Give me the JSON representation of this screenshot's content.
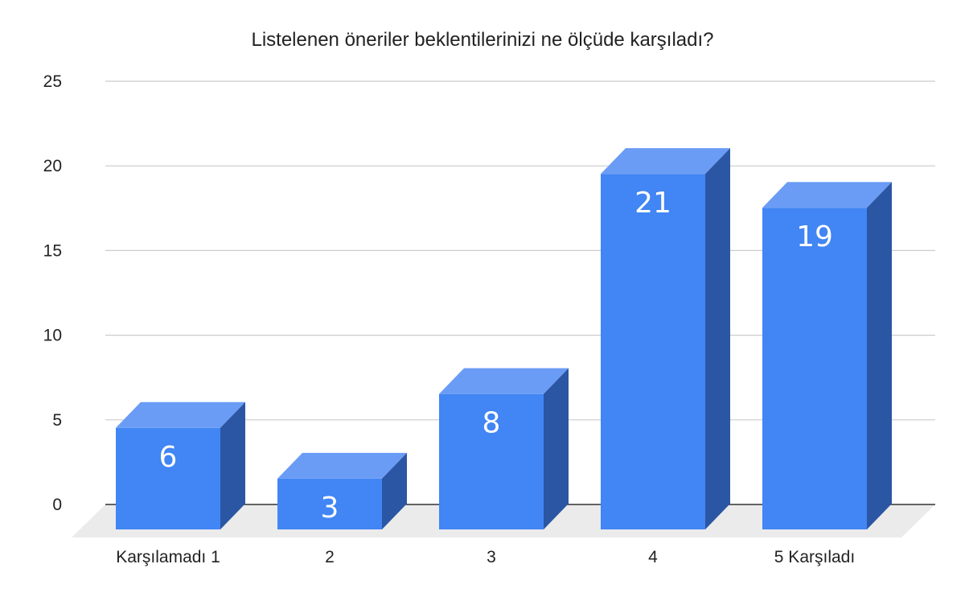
{
  "chart_data": {
    "type": "bar",
    "title": "Listelenen öneriler beklentilerinizi ne ölçüde karşıladı?",
    "categories": [
      "Karşılamadı 1",
      "2",
      "3",
      "4",
      "5 Karşıladı"
    ],
    "series": [
      {
        "values": [
          6,
          3,
          8,
          21,
          19
        ]
      }
    ],
    "data_labels": [
      "6",
      "3",
      "8",
      "21",
      "19"
    ],
    "y_ticks": [
      "0",
      "5",
      "10",
      "15",
      "20",
      "25"
    ],
    "ylim": [
      0,
      25
    ],
    "xlabel": "",
    "ylabel": "",
    "grid": true,
    "legend": "none",
    "style": "3d",
    "colors": {
      "bar_front": "#4285f4",
      "bar_top": "#6a9cf5",
      "bar_side": "#2b56a3",
      "floor": "#ebebeb",
      "grid": "#cccccc",
      "axis": "#333333"
    }
  }
}
